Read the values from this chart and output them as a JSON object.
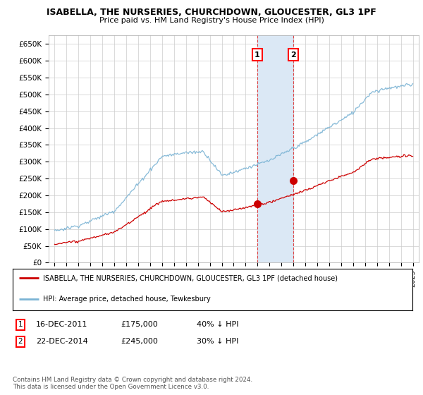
{
  "title": "ISABELLA, THE NURSERIES, CHURCHDOWN, GLOUCESTER, GL3 1PF",
  "subtitle": "Price paid vs. HM Land Registry's House Price Index (HPI)",
  "ylim": [
    0,
    675000
  ],
  "yticks": [
    0,
    50000,
    100000,
    150000,
    200000,
    250000,
    300000,
    350000,
    400000,
    450000,
    500000,
    550000,
    600000,
    650000
  ],
  "ytick_labels": [
    "£0",
    "£50K",
    "£100K",
    "£150K",
    "£200K",
    "£250K",
    "£300K",
    "£350K",
    "£400K",
    "£450K",
    "£500K",
    "£550K",
    "£600K",
    "£650K"
  ],
  "hpi_color": "#7ab3d4",
  "price_color": "#cc0000",
  "sale1_date": 2011.96,
  "sale1_price": 175000,
  "sale1_label": "1",
  "sale2_date": 2014.97,
  "sale2_price": 245000,
  "sale2_label": "2",
  "legend_line1": "ISABELLA, THE NURSERIES, CHURCHDOWN, GLOUCESTER, GL3 1PF (detached house)",
  "legend_line2": "HPI: Average price, detached house, Tewkesbury",
  "footer": "Contains HM Land Registry data © Crown copyright and database right 2024.\nThis data is licensed under the Open Government Licence v3.0.",
  "grid_color": "#cccccc",
  "bg_color": "#ffffff",
  "highlight_color": "#dbe8f5"
}
